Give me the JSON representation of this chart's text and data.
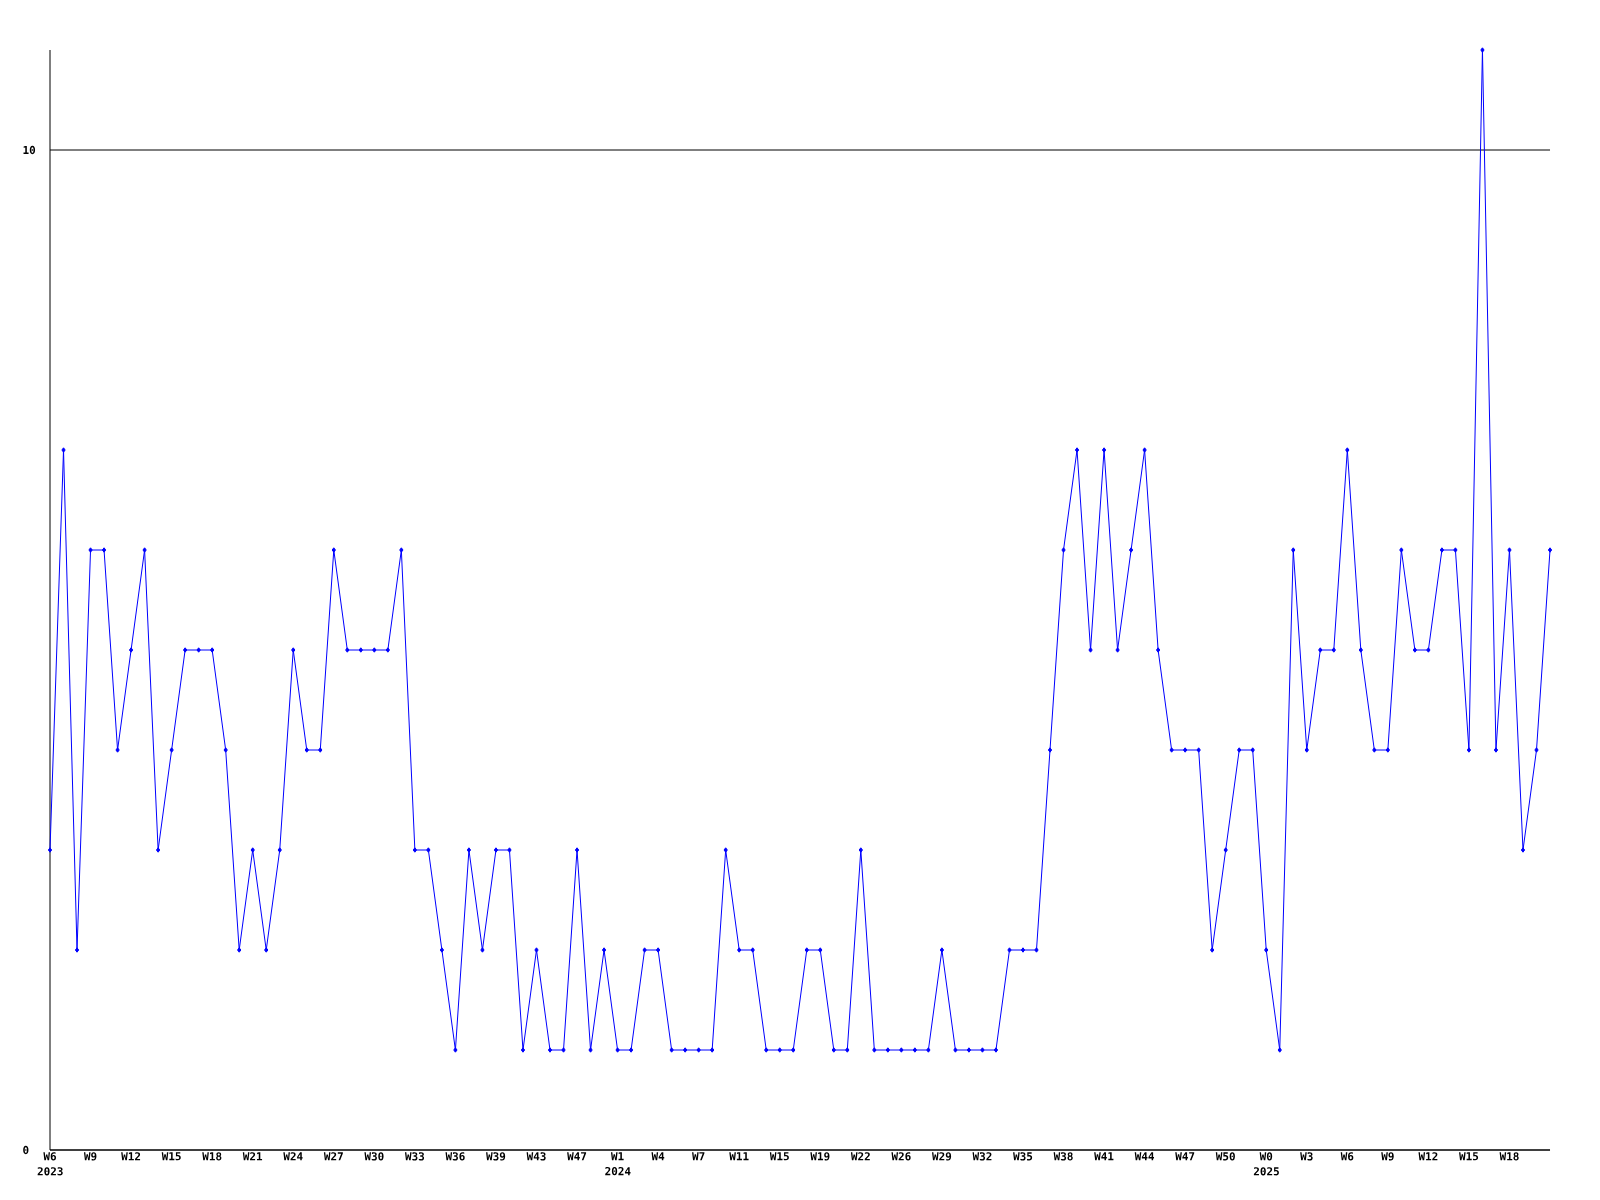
{
  "chart_data": {
    "type": "line",
    "categories": [
      "W6 2023",
      null,
      null,
      "W9",
      null,
      null,
      "W12",
      null,
      null,
      "W15",
      null,
      null,
      "W18",
      null,
      null,
      "W21",
      null,
      null,
      "W24",
      null,
      null,
      "W27",
      null,
      null,
      "W30",
      null,
      null,
      "W33",
      null,
      null,
      "W36",
      null,
      null,
      "W39",
      null,
      null,
      "W43",
      null,
      null,
      "W47",
      null,
      null,
      "W1 2024",
      null,
      null,
      "W4",
      null,
      null,
      "W7",
      null,
      null,
      "W11",
      null,
      null,
      "W15",
      null,
      null,
      "W19",
      null,
      null,
      "W22",
      null,
      null,
      "W26",
      null,
      null,
      "W29",
      null,
      null,
      "W32",
      null,
      null,
      "W35",
      null,
      null,
      "W38",
      null,
      null,
      "W41",
      null,
      null,
      "W44",
      null,
      null,
      "W47",
      null,
      null,
      "W50",
      null,
      null,
      "W0 2025",
      null,
      null,
      "W3",
      null,
      null,
      "W6",
      null,
      null,
      "W9",
      null,
      null,
      "W12",
      null,
      null,
      "W15",
      null,
      null,
      "W18",
      null,
      null,
      null
    ],
    "values": [
      3,
      7,
      2,
      6,
      6,
      4,
      5,
      6,
      3,
      4,
      5,
      5,
      5,
      4,
      2,
      3,
      2,
      3,
      5,
      4,
      4,
      6,
      5,
      5,
      5,
      5,
      6,
      3,
      3,
      2,
      1,
      3,
      2,
      3,
      3,
      1,
      2,
      1,
      1,
      3,
      1,
      2,
      1,
      1,
      2,
      2,
      1,
      1,
      1,
      1,
      3,
      2,
      2,
      1,
      1,
      1,
      2,
      2,
      1,
      1,
      3,
      1,
      1,
      1,
      1,
      1,
      2,
      1,
      1,
      1,
      1,
      2,
      2,
      2,
      4,
      6,
      7,
      5,
      7,
      5,
      6,
      7,
      5,
      4,
      4,
      4,
      2,
      3,
      4,
      4,
      2,
      1,
      6,
      4,
      5,
      5,
      7,
      5,
      4,
      4,
      6,
      5,
      5,
      6,
      6,
      4,
      11,
      4,
      6,
      3,
      4,
      6
    ],
    "color": "#0000ff",
    "ylim": [
      0,
      11
    ],
    "yticks": [
      0,
      10
    ],
    "grid": "y",
    "marker": "diamond",
    "line_style": "solid"
  }
}
